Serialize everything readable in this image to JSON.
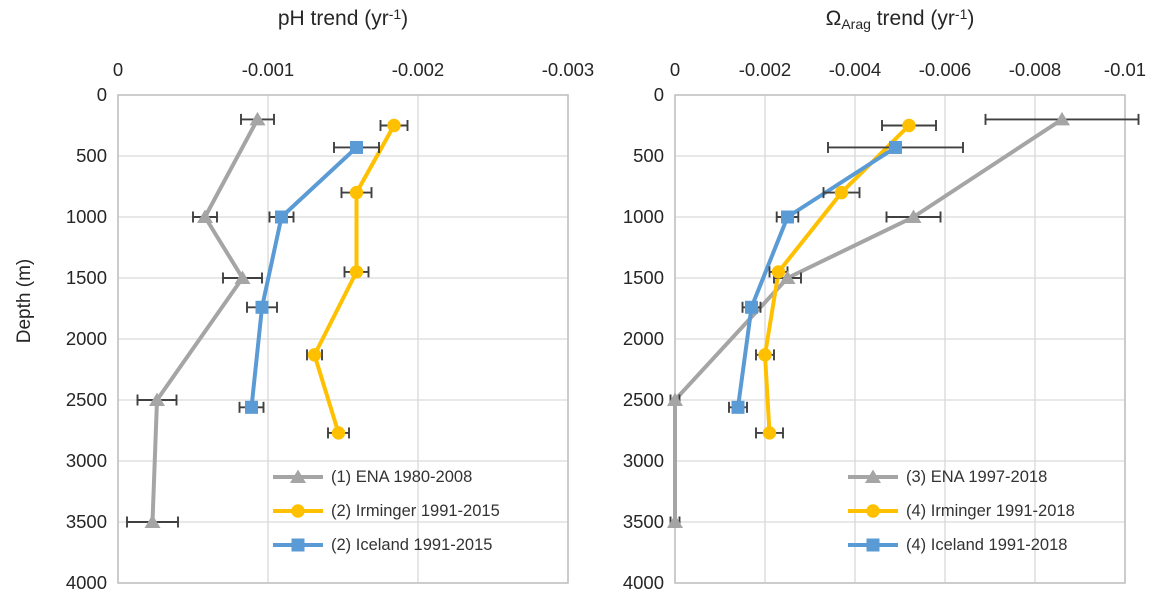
{
  "colors": {
    "ena": "#A5A5A5",
    "irminger": "#FFC000",
    "iceland": "#5B9BD5",
    "error_bar": "#404040",
    "gridline": "#D9D9D9",
    "plot_border": "#BFBFBF",
    "text": "#262626"
  },
  "depth_axis": {
    "label": "Depth (m)",
    "min": 0,
    "max": 4000,
    "ticks": [
      0,
      500,
      1000,
      1500,
      2000,
      2500,
      3000,
      3500,
      4000
    ]
  },
  "chart_data": [
    {
      "type": "line",
      "orientation": "vertical-depth-profile",
      "title": "pH trend (yr⁻¹)",
      "title_parts": [
        {
          "text": "pH trend (yr"
        },
        {
          "text": "-1",
          "script": "sup"
        },
        {
          "text": ")"
        }
      ],
      "xlabel": "pH trend (yr-1)",
      "ylabel": "Depth (m)",
      "x_axis": {
        "position": "top",
        "min": 0,
        "max": -0.003,
        "ticks": [
          0,
          -0.001,
          -0.002,
          -0.003
        ],
        "tick_labels": [
          "0",
          "-0.001",
          "-0.002",
          "-0.003"
        ]
      },
      "ylim": [
        0,
        4000
      ],
      "grid": true,
      "legend_position": "inside-bottom-right",
      "series": [
        {
          "name": "(1) ENA 1980-2008",
          "marker": "triangle",
          "color_key": "ena",
          "points": [
            {
              "depth": 200,
              "value": -0.00093,
              "err": 0.00011
            },
            {
              "depth": 1000,
              "value": -0.00058,
              "err": 8e-05
            },
            {
              "depth": 1500,
              "value": -0.00083,
              "err": 0.00013
            },
            {
              "depth": 2500,
              "value": -0.00026,
              "err": 0.00013
            },
            {
              "depth": 3500,
              "value": -0.00023,
              "err": 0.00017
            }
          ]
        },
        {
          "name": "(2) Irminger 1991-2015",
          "marker": "circle",
          "color_key": "irminger",
          "points": [
            {
              "depth": 250,
              "value": -0.00184,
              "err": 9e-05
            },
            {
              "depth": 800,
              "value": -0.00159,
              "err": 0.0001
            },
            {
              "depth": 1450,
              "value": -0.00159,
              "err": 8e-05
            },
            {
              "depth": 2130,
              "value": -0.00131,
              "err": 5e-05
            },
            {
              "depth": 2770,
              "value": -0.00147,
              "err": 7e-05
            }
          ]
        },
        {
          "name": "(2) Iceland 1991-2015",
          "marker": "square",
          "color_key": "iceland",
          "points": [
            {
              "depth": 430,
              "value": -0.00159,
              "err": 0.00015
            },
            {
              "depth": 1000,
              "value": -0.00109,
              "err": 8e-05
            },
            {
              "depth": 1740,
              "value": -0.00096,
              "err": 0.0001
            },
            {
              "depth": 2560,
              "value": -0.00089,
              "err": 8e-05
            }
          ]
        }
      ]
    },
    {
      "type": "line",
      "orientation": "vertical-depth-profile",
      "title": "ΩArag trend (yr⁻¹)",
      "title_parts": [
        {
          "text": "Ω"
        },
        {
          "text": "Arag",
          "script": "sub"
        },
        {
          "text": " trend (yr"
        },
        {
          "text": "-1",
          "script": "sup"
        },
        {
          "text": ")"
        }
      ],
      "xlabel": "Omega-Aragonite trend (yr-1)",
      "ylabel": "Depth (m)",
      "x_axis": {
        "position": "top",
        "min": 0,
        "max": -0.01,
        "ticks": [
          0,
          -0.002,
          -0.004,
          -0.006,
          -0.008,
          -0.01
        ],
        "tick_labels": [
          "0",
          "-0.002",
          "-0.004",
          "-0.006",
          "-0.008",
          "-0.01"
        ]
      },
      "ylim": [
        0,
        4000
      ],
      "grid": true,
      "legend_position": "inside-bottom-right",
      "series": [
        {
          "name": "(3) ENA 1997-2018",
          "marker": "triangle",
          "color_key": "ena",
          "points": [
            {
              "depth": 200,
              "value": -0.0086,
              "err": 0.0017
            },
            {
              "depth": 1000,
              "value": -0.0053,
              "err": 0.0006
            },
            {
              "depth": 1500,
              "value": -0.0025,
              "err": 0.0003
            },
            {
              "depth": 2500,
              "value": 0.0,
              "err": 0.0001
            },
            {
              "depth": 3500,
              "value": 0.0,
              "err": 0.0001
            }
          ]
        },
        {
          "name": "(4) Irminger 1991-2018",
          "marker": "circle",
          "color_key": "irminger",
          "points": [
            {
              "depth": 250,
              "value": -0.0052,
              "err": 0.0006
            },
            {
              "depth": 800,
              "value": -0.0037,
              "err": 0.0004
            },
            {
              "depth": 1450,
              "value": -0.0023,
              "err": 0.0002
            },
            {
              "depth": 2130,
              "value": -0.002,
              "err": 0.0002
            },
            {
              "depth": 2770,
              "value": -0.0021,
              "err": 0.0003
            }
          ]
        },
        {
          "name": "(4) Iceland 1991-2018",
          "marker": "square",
          "color_key": "iceland",
          "points": [
            {
              "depth": 430,
              "value": -0.0049,
              "err": 0.0015
            },
            {
              "depth": 1000,
              "value": -0.0025,
              "err": 0.00024
            },
            {
              "depth": 1740,
              "value": -0.0017,
              "err": 0.0002
            },
            {
              "depth": 2560,
              "value": -0.0014,
              "err": 0.0002
            }
          ]
        }
      ]
    }
  ]
}
